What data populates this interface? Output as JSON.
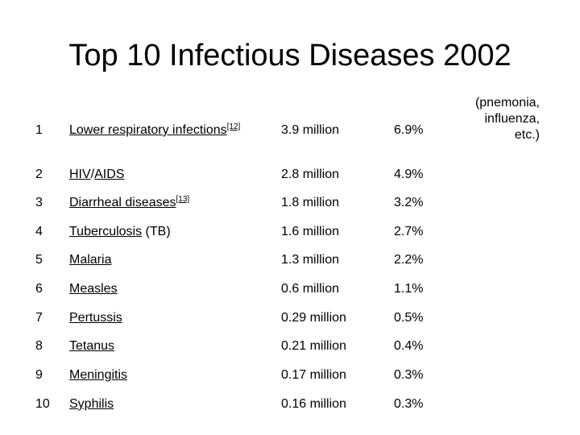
{
  "title": "Top 10 Infectious Diseases 2002",
  "rows": [
    {
      "rank": "1",
      "parts": [
        {
          "text": "Lower respiratory infections",
          "link": true
        },
        {
          "sup": "[12]"
        }
      ],
      "deaths": "3.9 million",
      "pct": "6.9%"
    },
    {
      "rank": "2",
      "parts": [
        {
          "text": "HIV",
          "link": true
        },
        {
          "text": "/",
          "link": false
        },
        {
          "text": "AIDS",
          "link": true
        }
      ],
      "deaths": "2.8 million",
      "pct": "4.9%"
    },
    {
      "rank": "3",
      "parts": [
        {
          "text": "Diarrheal diseases",
          "link": true
        },
        {
          "sup": "[13]"
        }
      ],
      "deaths": "1.8 million",
      "pct": "3.2%"
    },
    {
      "rank": "4",
      "parts": [
        {
          "text": "Tuberculosis",
          "link": true
        },
        {
          "text": " (TB)",
          "link": false
        }
      ],
      "deaths": "1.6 million",
      "pct": "2.7%"
    },
    {
      "rank": "5",
      "parts": [
        {
          "text": "Malaria",
          "link": true
        }
      ],
      "deaths": "1.3 million",
      "pct": "2.2%"
    },
    {
      "rank": "6",
      "parts": [
        {
          "text": "Measles",
          "link": true
        }
      ],
      "deaths": "0.6 million",
      "pct": "1.1%"
    },
    {
      "rank": "7",
      "parts": [
        {
          "text": "Pertussis",
          "link": true
        }
      ],
      "deaths": "0.29 million",
      "pct": "0.5%"
    },
    {
      "rank": "8",
      "parts": [
        {
          "text": "Tetanus",
          "link": true
        }
      ],
      "deaths": "0.21 million",
      "pct": "0.4%"
    },
    {
      "rank": "9",
      "parts": [
        {
          "text": "Meningitis",
          "link": true
        }
      ],
      "deaths": "0.17 million",
      "pct": "0.3%"
    },
    {
      "rank": "10",
      "parts": [
        {
          "text": "Syphilis",
          "link": true
        }
      ],
      "deaths": "0.16 million",
      "pct": "0.3%"
    }
  ],
  "note_lines": [
    "(pnemonia,",
    "influenza,",
    "etc.)"
  ]
}
